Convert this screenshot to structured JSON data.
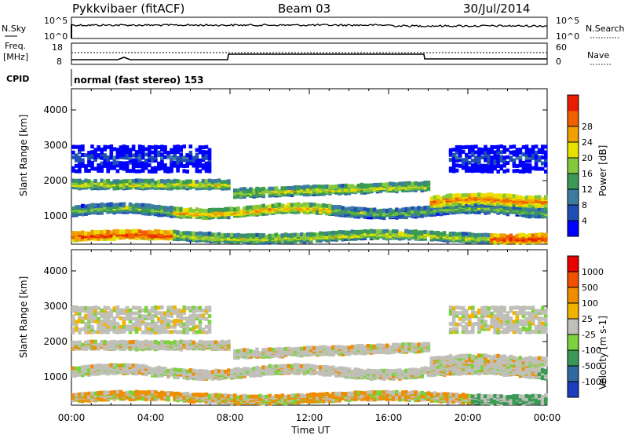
{
  "header": {
    "station": "Pykkvibaer (fitACF)",
    "beam": "Beam 03",
    "date": "30/Jul/2014"
  },
  "top_panels": {
    "nsky": {
      "label": "N.Sky",
      "ytick_top": "10^5",
      "ytick_bottom": "10^0",
      "right_tick_top": "10^5",
      "right_tick_bottom": "10^0",
      "right_label": "N.Search"
    },
    "freq": {
      "label_line1": "Freq.",
      "label_line2": "[MHz]",
      "ytick_top": "18",
      "ytick_bottom": "8",
      "right_tick_top": "60",
      "right_tick_bottom": "0",
      "right_label": "Nave"
    },
    "cpid": {
      "label": "CPID",
      "text": "normal (fast stereo) 153"
    }
  },
  "colors": {
    "power": [
      "#0000ff",
      "#1e4fb4",
      "#3c7ca0",
      "#3a9a55",
      "#84c83c",
      "#e8e000",
      "#f0a000",
      "#f06000",
      "#e81e00"
    ],
    "velocity": [
      "#e80000",
      "#f05000",
      "#f08c00",
      "#f0b400",
      "#c0c0b8",
      "#7cd23c",
      "#3a9a55",
      "#2e6aa0",
      "#1e3cbe"
    ]
  },
  "chart_data": [
    {
      "type": "heatmap",
      "quantity": "power",
      "ylabel": "Slant Range [km]",
      "yticks": [
        1000,
        2000,
        3000,
        4000
      ],
      "ylim": [
        200,
        4600
      ],
      "xlim": [
        0,
        24
      ],
      "colorbar": {
        "label": "Power [dB]",
        "ticks": [
          "4",
          "8",
          "12",
          "16",
          "20",
          "24",
          "28"
        ]
      },
      "xticks": [
        "00:00",
        "04:00",
        "08:00",
        "12:00",
        "16:00",
        "20:00",
        "00:00"
      ]
    },
    {
      "type": "heatmap",
      "quantity": "velocity",
      "ylabel": "Slant Range [km]",
      "yticks": [
        1000,
        2000,
        3000,
        4000
      ],
      "ylim": [
        200,
        4600
      ],
      "xlim": [
        0,
        24
      ],
      "colorbar": {
        "label": "Velocity [m s-1]",
        "ticks": [
          "1000",
          "500",
          "100",
          "25",
          "-25",
          "-100",
          "-500",
          "-1000"
        ]
      },
      "xticks": [
        "00:00",
        "04:00",
        "08:00",
        "12:00",
        "16:00",
        "20:00",
        "00:00"
      ],
      "xlabel": "Time UT"
    }
  ]
}
